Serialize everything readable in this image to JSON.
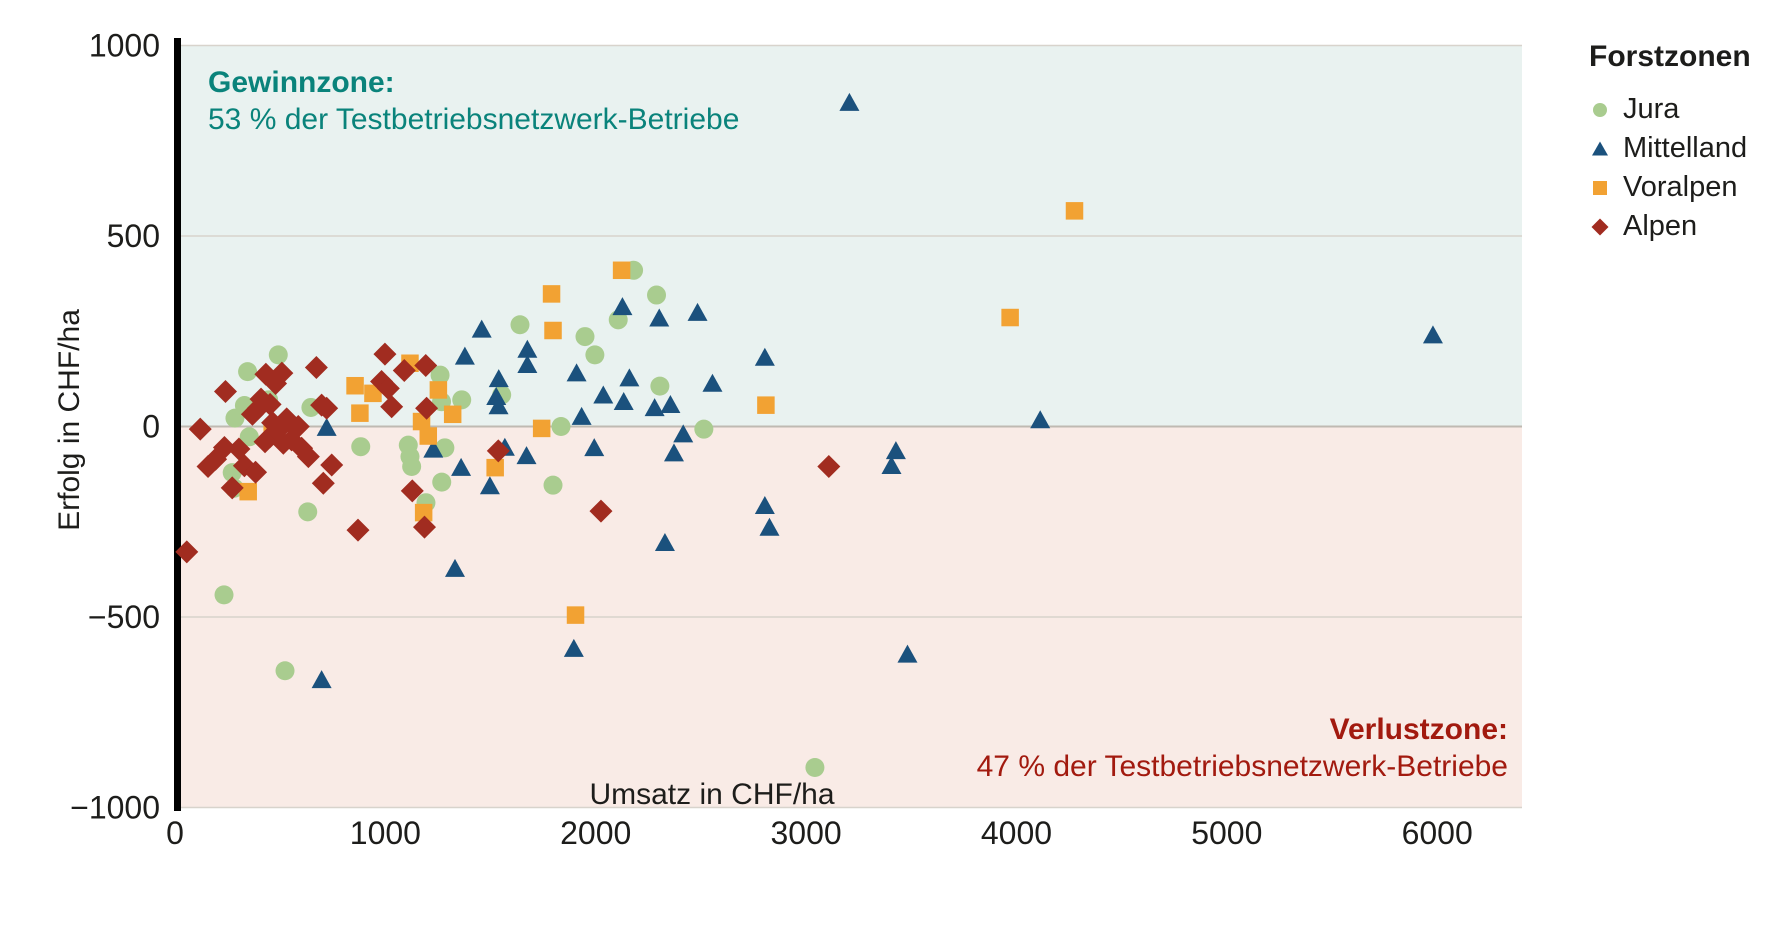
{
  "chart_data": {
    "type": "scatter",
    "xlabel": "Umsatz in CHF/ha",
    "ylabel": "Erfolg in CHF/ha",
    "xlim": [
      0,
      6400
    ],
    "ylim": [
      -1000,
      1000
    ],
    "x_ticks": [
      0,
      1000,
      2000,
      3000,
      4000,
      5000,
      6000
    ],
    "y_ticks": [
      1000,
      500,
      0,
      -500,
      -1000
    ],
    "grid": "horizontal",
    "legend_position": "right-top",
    "legend_title": "Forstzonen",
    "zones": {
      "gewinn": {
        "label": "Gewinnzone:",
        "sublabel": "53 % der Testbetriebsnetzwerk-Betriebe",
        "range": [
          0,
          1000
        ],
        "fill_color": "#e9f2f0",
        "text_color": "#0a837b"
      },
      "verlust": {
        "label": "Verlustzone:",
        "sublabel": "47 % der Testbetriebsnetzwerk-Betriebe",
        "range": [
          -1000,
          0
        ],
        "fill_color": "#f9ebe6",
        "text_color": "#a21a0f"
      }
    },
    "series": [
      {
        "name": "Jura",
        "marker": "circle",
        "color": "#a9cc8f",
        "points": [
          [
            491,
            188
          ],
          [
            345,
            144
          ],
          [
            285,
            22
          ],
          [
            353,
            -27
          ],
          [
            330,
            55
          ],
          [
            445,
            70
          ],
          [
            646,
            50
          ],
          [
            272,
            -121
          ],
          [
            282,
            -162
          ],
          [
            631,
            -224
          ],
          [
            883,
            -53
          ],
          [
            1109,
            -49
          ],
          [
            1117,
            -79
          ],
          [
            1125,
            -105
          ],
          [
            1260,
            135
          ],
          [
            1267,
            65
          ],
          [
            1363,
            70
          ],
          [
            1283,
            -56
          ],
          [
            1268,
            -146
          ],
          [
            1193,
            -200
          ],
          [
            1553,
            83
          ],
          [
            1640,
            267
          ],
          [
            1835,
            0
          ],
          [
            1797,
            -154
          ],
          [
            1949,
            236
          ],
          [
            1996,
            188
          ],
          [
            2107,
            280
          ],
          [
            2180,
            410
          ],
          [
            2289,
            345
          ],
          [
            2305,
            106
          ],
          [
            2514,
            -7
          ],
          [
            233,
            -442
          ],
          [
            523,
            -641
          ],
          [
            3042,
            -895
          ]
        ]
      },
      {
        "name": "Mittelland",
        "marker": "triangle",
        "color": "#1b517d",
        "points": [
          [
            721,
            -5
          ],
          [
            1228,
            -62
          ],
          [
            1360,
            -110
          ],
          [
            1331,
            -375
          ],
          [
            1497,
            -158
          ],
          [
            1527,
            76
          ],
          [
            1538,
            52
          ],
          [
            1539,
            123
          ],
          [
            1568,
            -57
          ],
          [
            1378,
            182
          ],
          [
            1458,
            253
          ],
          [
            1675,
            200
          ],
          [
            1675,
            160
          ],
          [
            1671,
            -79
          ],
          [
            1896,
            -585
          ],
          [
            1909,
            138
          ],
          [
            1933,
            24
          ],
          [
            1993,
            -58
          ],
          [
            2036,
            80
          ],
          [
            2127,
            312
          ],
          [
            2133,
            63
          ],
          [
            2160,
            125
          ],
          [
            2280,
            47
          ],
          [
            2355,
            55
          ],
          [
            2302,
            282
          ],
          [
            2484,
            297
          ],
          [
            2555,
            111
          ],
          [
            2804,
            179
          ],
          [
            2416,
            -22
          ],
          [
            2372,
            -72
          ],
          [
            3427,
            -66
          ],
          [
            3406,
            -105
          ],
          [
            2804,
            -210
          ],
          [
            2826,
            -267
          ],
          [
            2329,
            -307
          ],
          [
            4113,
            15
          ],
          [
            3482,
            -600
          ],
          [
            3206,
            848
          ],
          [
            5980,
            238
          ],
          [
            697,
            -667
          ]
        ]
      },
      {
        "name": "Voralpen",
        "marker": "square",
        "color": "#f2a233",
        "points": [
          [
            856,
            107
          ],
          [
            879,
            35
          ],
          [
            941,
            87
          ],
          [
            462,
            -9
          ],
          [
            348,
            -171
          ],
          [
            1117,
            166
          ],
          [
            1252,
            96
          ],
          [
            1320,
            32
          ],
          [
            1172,
            13
          ],
          [
            1204,
            -25
          ],
          [
            1182,
            -226
          ],
          [
            1522,
            -108
          ],
          [
            1743,
            -5
          ],
          [
            1790,
            348
          ],
          [
            1797,
            252
          ],
          [
            1904,
            -495
          ],
          [
            2123,
            410
          ],
          [
            2809,
            56
          ],
          [
            3970,
            286
          ],
          [
            4276,
            566
          ]
        ]
      },
      {
        "name": "Alpen",
        "marker": "diamond",
        "color": "#a12c20",
        "points": [
          [
            240,
            92
          ],
          [
            120,
            -7
          ],
          [
            157,
            -105
          ],
          [
            193,
            -86
          ],
          [
            235,
            -55
          ],
          [
            304,
            -59
          ],
          [
            330,
            -103
          ],
          [
            383,
            -120
          ],
          [
            272,
            -161
          ],
          [
            409,
            72
          ],
          [
            432,
            137
          ],
          [
            508,
            140
          ],
          [
            478,
            113
          ],
          [
            396,
            48
          ],
          [
            368,
            32
          ],
          [
            452,
            58
          ],
          [
            464,
            10
          ],
          [
            499,
            -5
          ],
          [
            531,
            20
          ],
          [
            551,
            8
          ],
          [
            586,
            0
          ],
          [
            452,
            -27
          ],
          [
            428,
            -40
          ],
          [
            515,
            -44
          ],
          [
            554,
            -35
          ],
          [
            602,
            -57
          ],
          [
            634,
            -79
          ],
          [
            672,
            155
          ],
          [
            697,
            56
          ],
          [
            721,
            48
          ],
          [
            745,
            -101
          ],
          [
            705,
            -149
          ],
          [
            870,
            -272
          ],
          [
            998,
            190
          ],
          [
            982,
            118
          ],
          [
            1014,
            100
          ],
          [
            1030,
            52
          ],
          [
            1090,
            147
          ],
          [
            1192,
            160
          ],
          [
            1196,
            48
          ],
          [
            1128,
            -169
          ],
          [
            1186,
            -264
          ],
          [
            1537,
            -64
          ],
          [
            2025,
            -222
          ],
          [
            3108,
            -105
          ],
          [
            56,
            -329
          ]
        ]
      }
    ]
  }
}
